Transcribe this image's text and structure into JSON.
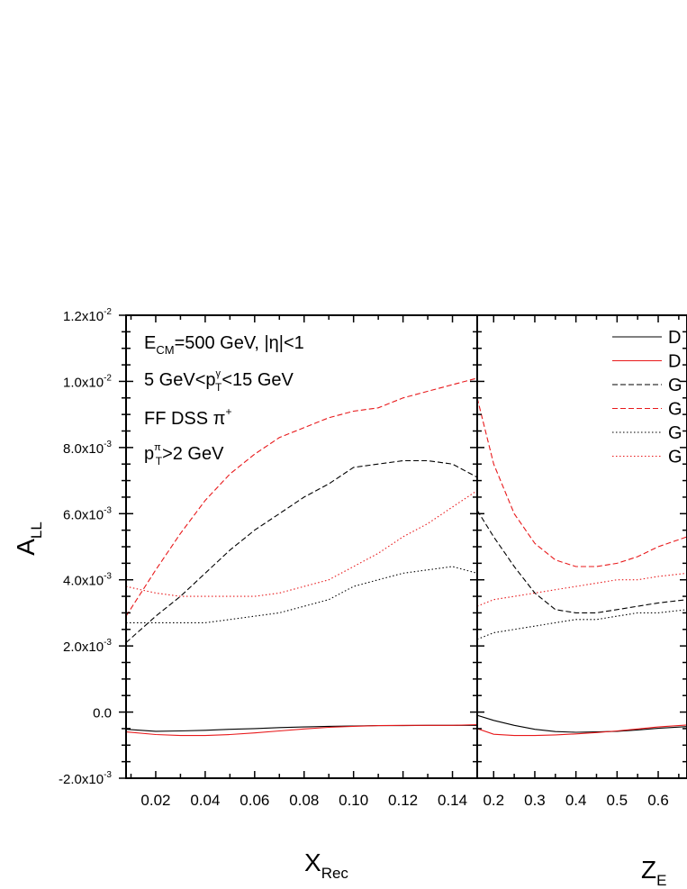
{
  "chart_data": [
    {
      "type": "line",
      "xlabel": "X",
      "xlabel_sub": "Rec",
      "ylabel": "A",
      "ylabel_sub": "LL",
      "xlim": [
        0.008,
        0.15
      ],
      "ylim": [
        -0.002,
        0.012
      ],
      "xticks": [
        0.02,
        0.04,
        0.06,
        0.08,
        0.1,
        0.12,
        0.14
      ],
      "xtick_labels": [
        "0.02",
        "0.04",
        "0.06",
        "0.08",
        "0.10",
        "0.12",
        "0.14"
      ],
      "yticks": [
        -0.002,
        0,
        0.002,
        0.004,
        0.006,
        0.008,
        0.01,
        0.012
      ],
      "ytick_labels": [
        {
          "base": "-2.0x10",
          "exp": "-3"
        },
        {
          "base": "0.0",
          "exp": ""
        },
        {
          "base": "2.0x10",
          "exp": "-3"
        },
        {
          "base": "4.0x10",
          "exp": "-3"
        },
        {
          "base": "6.0x10",
          "exp": "-3"
        },
        {
          "base": "8.0x10",
          "exp": "-3"
        },
        {
          "base": "1.0x10",
          "exp": "-2"
        },
        {
          "base": "1.2x10",
          "exp": "-2"
        }
      ],
      "annotations": {
        "line1": {
          "a": "E",
          "a_sub": "CM",
          "b": "=500 GeV, |η|<1"
        },
        "line2": {
          "a": "5 GeV<p",
          "a_sup": "γ",
          "a_sub": "T",
          "b": "<15 GeV"
        },
        "line3": {
          "a": "FF DSS π",
          "a_sup": "+"
        },
        "line4": {
          "a": "p",
          "a_sup": "π",
          "a_sub": "T",
          "b": ">2 GeV"
        }
      },
      "series": [
        {
          "color": "#000000",
          "style": "solid",
          "x": [
            0.008,
            0.02,
            0.03,
            0.04,
            0.05,
            0.06,
            0.07,
            0.08,
            0.09,
            0.1,
            0.11,
            0.12,
            0.13,
            0.14,
            0.15
          ],
          "y": [
            -0.00052,
            -0.00058,
            -0.00057,
            -0.00055,
            -0.00052,
            -0.0005,
            -0.00047,
            -0.00045,
            -0.00043,
            -0.00042,
            -0.00041,
            -0.00041,
            -0.0004,
            -0.0004,
            -0.0004
          ]
        },
        {
          "color": "#e8191b",
          "style": "solid",
          "x": [
            0.008,
            0.02,
            0.03,
            0.04,
            0.05,
            0.06,
            0.07,
            0.08,
            0.09,
            0.1,
            0.11,
            0.12,
            0.13,
            0.14,
            0.15
          ],
          "y": [
            -0.0006,
            -0.00068,
            -0.00071,
            -0.00071,
            -0.00068,
            -0.00063,
            -0.00057,
            -0.00051,
            -0.00046,
            -0.00043,
            -0.00041,
            -0.0004,
            -0.0004,
            -0.0004,
            -0.00038
          ]
        },
        {
          "color": "#000000",
          "style": "dashed",
          "x": [
            0.008,
            0.02,
            0.03,
            0.04,
            0.05,
            0.06,
            0.07,
            0.08,
            0.09,
            0.1,
            0.11,
            0.12,
            0.13,
            0.14,
            0.15
          ],
          "y": [
            0.0021,
            0.0029,
            0.0035,
            0.0042,
            0.0049,
            0.0055,
            0.006,
            0.0065,
            0.0069,
            0.0074,
            0.0075,
            0.0076,
            0.0076,
            0.0075,
            0.0071
          ]
        },
        {
          "color": "#e8191b",
          "style": "dashed",
          "x": [
            0.008,
            0.02,
            0.03,
            0.04,
            0.05,
            0.06,
            0.07,
            0.08,
            0.09,
            0.1,
            0.11,
            0.12,
            0.13,
            0.14,
            0.15
          ],
          "y": [
            0.0029,
            0.0043,
            0.0054,
            0.0064,
            0.0072,
            0.0078,
            0.0083,
            0.0086,
            0.0089,
            0.0091,
            0.0092,
            0.0095,
            0.0097,
            0.0099,
            0.0101
          ]
        },
        {
          "color": "#000000",
          "style": "dotted",
          "x": [
            0.008,
            0.02,
            0.03,
            0.04,
            0.05,
            0.06,
            0.07,
            0.08,
            0.09,
            0.1,
            0.11,
            0.12,
            0.13,
            0.14,
            0.15
          ],
          "y": [
            0.0027,
            0.0027,
            0.0027,
            0.0027,
            0.0028,
            0.0029,
            0.003,
            0.0032,
            0.0034,
            0.0038,
            0.004,
            0.0042,
            0.0043,
            0.0044,
            0.0042
          ]
        },
        {
          "color": "#e8191b",
          "style": "dotted",
          "x": [
            0.008,
            0.02,
            0.03,
            0.04,
            0.05,
            0.06,
            0.07,
            0.08,
            0.09,
            0.1,
            0.11,
            0.12,
            0.13,
            0.14,
            0.15
          ],
          "y": [
            0.0038,
            0.0036,
            0.0035,
            0.0035,
            0.0035,
            0.0035,
            0.0036,
            0.0038,
            0.004,
            0.0044,
            0.0048,
            0.0053,
            0.0057,
            0.0062,
            0.0067
          ]
        }
      ]
    },
    {
      "type": "line",
      "xlabel": "Z",
      "xlabel_sub": "E",
      "xlim": [
        0.16,
        0.67
      ],
      "ylim": [
        -0.002,
        0.012
      ],
      "xticks": [
        0.2,
        0.3,
        0.4,
        0.5,
        0.6
      ],
      "xtick_labels": [
        "0.2",
        "0.3",
        "0.4",
        "0.5",
        "0.6"
      ],
      "legend": {
        "placement": "top-right",
        "entries": [
          "D",
          "D",
          "G",
          "G",
          "G",
          "G"
        ]
      },
      "series": [
        {
          "name": "D",
          "color": "#000000",
          "style": "solid",
          "x": [
            0.16,
            0.2,
            0.25,
            0.3,
            0.35,
            0.4,
            0.45,
            0.5,
            0.55,
            0.6,
            0.67
          ],
          "y": [
            -0.0001,
            -0.00025,
            -0.0004,
            -0.00052,
            -0.00059,
            -0.00061,
            -0.0006,
            -0.00058,
            -0.00054,
            -0.00049,
            -0.00044
          ]
        },
        {
          "name": "D",
          "color": "#e8191b",
          "style": "solid",
          "x": [
            0.16,
            0.2,
            0.25,
            0.3,
            0.35,
            0.4,
            0.45,
            0.5,
            0.55,
            0.6,
            0.67
          ],
          "y": [
            -0.0005,
            -0.00067,
            -0.00071,
            -0.00071,
            -0.00069,
            -0.00066,
            -0.00062,
            -0.00057,
            -0.00051,
            -0.00045,
            -0.00039
          ]
        },
        {
          "name": "G",
          "color": "#000000",
          "style": "dashed",
          "x": [
            0.16,
            0.2,
            0.25,
            0.3,
            0.35,
            0.4,
            0.45,
            0.5,
            0.55,
            0.6,
            0.67
          ],
          "y": [
            0.0061,
            0.0053,
            0.0044,
            0.0036,
            0.0031,
            0.003,
            0.003,
            0.0031,
            0.0032,
            0.0033,
            0.0034
          ]
        },
        {
          "name": "G",
          "color": "#e8191b",
          "style": "dashed",
          "x": [
            0.16,
            0.2,
            0.25,
            0.3,
            0.35,
            0.4,
            0.45,
            0.5,
            0.55,
            0.6,
            0.67
          ],
          "y": [
            0.0095,
            0.0075,
            0.006,
            0.0051,
            0.0046,
            0.0044,
            0.0044,
            0.0045,
            0.0047,
            0.005,
            0.0053
          ]
        },
        {
          "name": "G",
          "color": "#000000",
          "style": "dotted",
          "x": [
            0.16,
            0.2,
            0.25,
            0.3,
            0.35,
            0.4,
            0.45,
            0.5,
            0.55,
            0.6,
            0.67
          ],
          "y": [
            0.0022,
            0.0024,
            0.0025,
            0.0026,
            0.0027,
            0.0028,
            0.0028,
            0.0029,
            0.003,
            0.003,
            0.0031
          ]
        },
        {
          "name": "G",
          "color": "#e8191b",
          "style": "dotted",
          "x": [
            0.16,
            0.2,
            0.25,
            0.3,
            0.35,
            0.4,
            0.45,
            0.5,
            0.55,
            0.6,
            0.67
          ],
          "y": [
            0.0032,
            0.0034,
            0.0035,
            0.0036,
            0.0037,
            0.0038,
            0.0039,
            0.004,
            0.004,
            0.0041,
            0.0042
          ]
        }
      ]
    }
  ]
}
